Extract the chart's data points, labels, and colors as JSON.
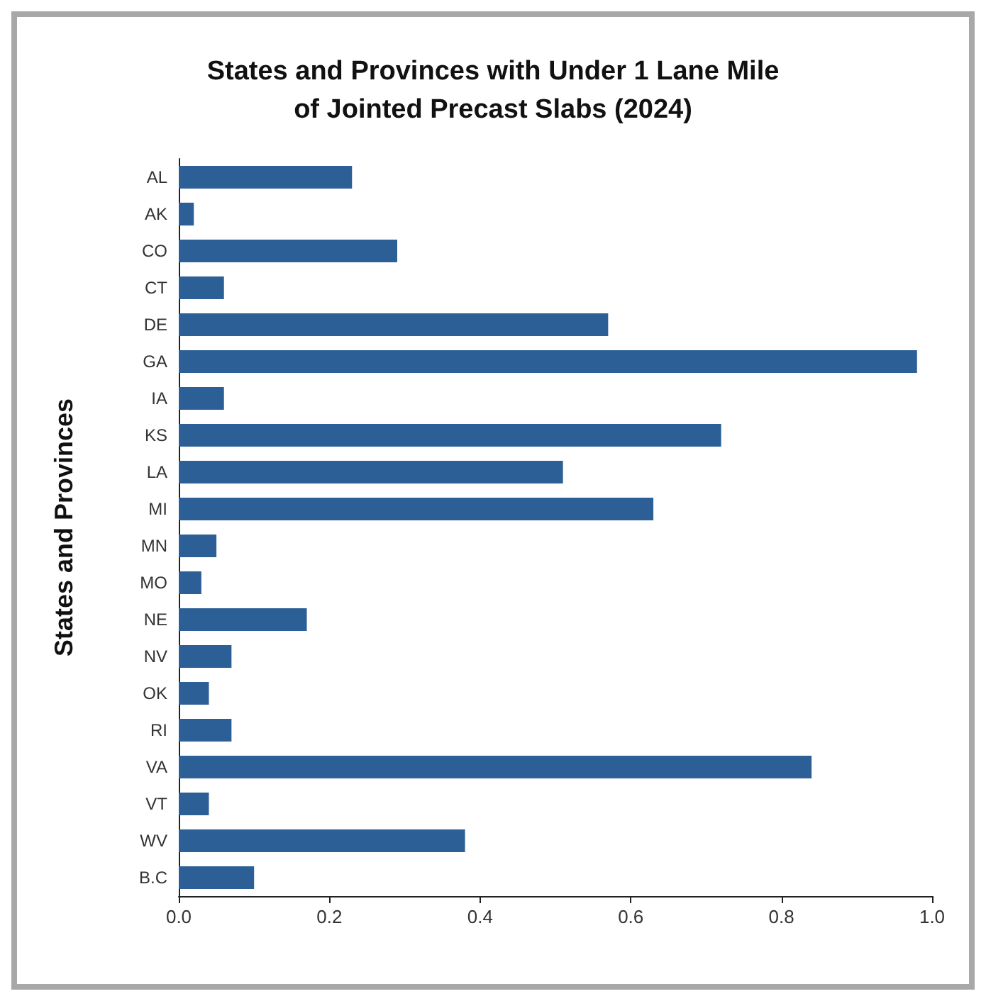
{
  "chart_data": {
    "type": "bar",
    "orientation": "horizontal",
    "title": "States and Provinces with Under 1 Lane Mile\nof Jointed Precast Slabs (2024)",
    "ylabel": "States and Provinces",
    "categories": [
      "AL",
      "AK",
      "CO",
      "CT",
      "DE",
      "GA",
      "IA",
      "KS",
      "LA",
      "MI",
      "MN",
      "MO",
      "NE",
      "NV",
      "OK",
      "RI",
      "VA",
      "VT",
      "WV",
      "B.C"
    ],
    "values": [
      0.23,
      0.02,
      0.29,
      0.06,
      0.57,
      0.98,
      0.06,
      0.72,
      0.51,
      0.63,
      0.05,
      0.03,
      0.17,
      0.07,
      0.04,
      0.07,
      0.84,
      0.04,
      0.38,
      0.1
    ],
    "color": "#2b5f95",
    "xlim": [
      0,
      1
    ],
    "xticks": [
      {
        "value": 0,
        "label": "0.0"
      },
      0.2,
      0.4,
      0.6,
      0.8,
      {
        "value": 1,
        "label": "1.0"
      }
    ],
    "grid": false
  }
}
